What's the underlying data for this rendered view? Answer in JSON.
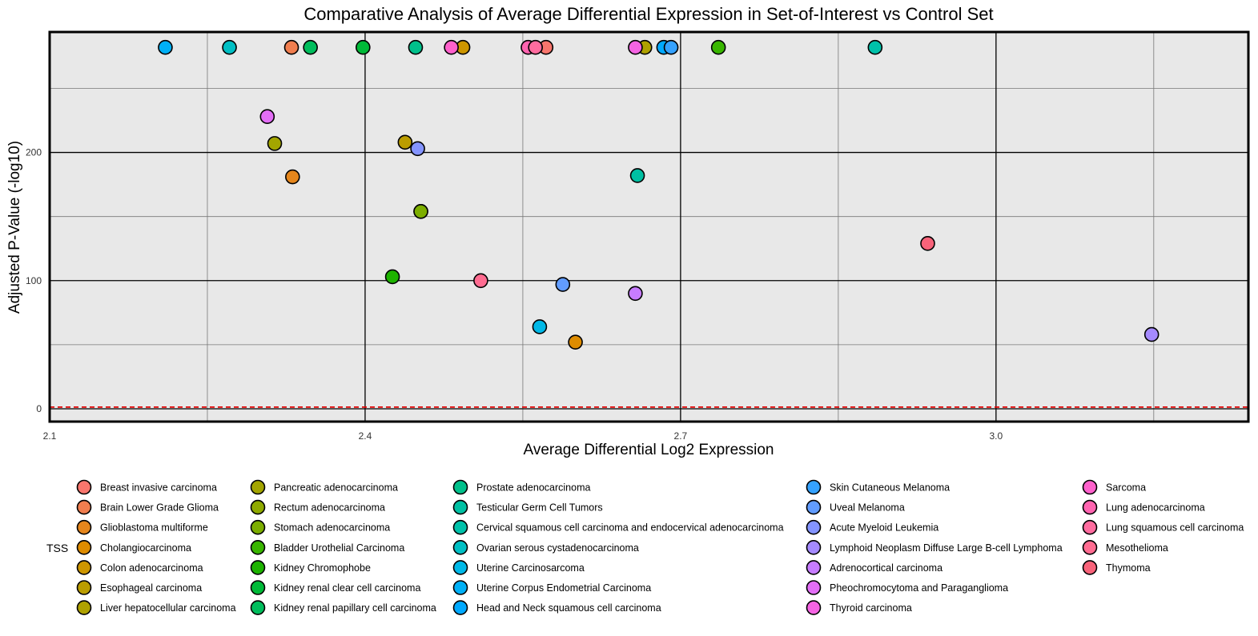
{
  "chart_data": {
    "type": "scatter",
    "title": "Comparative Analysis of Average Differential Expression in Set-of-Interest vs Control Set",
    "xlabel": "Average Differential Log2 Expression",
    "ylabel": "Adjusted P-Value (-log10)",
    "xlim": [
      2.1,
      3.24
    ],
    "ylim": [
      -10,
      294
    ],
    "x_ticks": [
      "2.1",
      "2.4",
      "2.7",
      "3.0"
    ],
    "y_ticks": [
      "0",
      "100",
      "200"
    ],
    "grid": true,
    "threshold_line": {
      "y": 1.3,
      "color": "#e00000",
      "style": "dashed"
    },
    "legend": {
      "title": "TSS",
      "placement": "bottom",
      "columns": [
        [
          "Breast invasive carcinoma",
          "Brain Lower Grade Glioma",
          "Glioblastoma multiforme",
          "Cholangiocarcinoma",
          "Colon adenocarcinoma",
          "Esophageal carcinoma",
          "Liver hepatocellular carcinoma"
        ],
        [
          "Pancreatic adenocarcinoma",
          "Rectum adenocarcinoma",
          "Stomach adenocarcinoma",
          "Bladder Urothelial Carcinoma",
          "Kidney Chromophobe",
          "Kidney renal clear cell carcinoma",
          "Kidney renal papillary cell carcinoma"
        ],
        [
          "Prostate adenocarcinoma",
          "Testicular Germ Cell Tumors",
          "Cervical squamous cell carcinoma and endocervical adenocarcinoma",
          "Ovarian serous cystadenocarcinoma",
          "Uterine Carcinosarcoma",
          "Uterine Corpus Endometrial Carcinoma",
          "Head and Neck squamous cell carcinoma"
        ],
        [
          "Skin Cutaneous Melanoma",
          "Uveal Melanoma",
          "Acute Myeloid Leukemia",
          "Lymphoid Neoplasm Diffuse Large B-cell Lymphoma",
          "Adrenocortical carcinoma",
          "Pheochromocytoma and Paraganglioma",
          "Thyroid carcinoma"
        ],
        [
          "Sarcoma",
          "Lung adenocarcinoma",
          "Lung squamous cell carcinoma",
          "Mesothelioma",
          "Thymoma"
        ]
      ]
    },
    "series": [
      {
        "name": "Breast invasive carcinoma",
        "color": "#F8766D",
        "x": 2.572,
        "y": 282
      },
      {
        "name": "Brain Lower Grade Glioma",
        "color": "#F07E4F",
        "x": 2.33,
        "y": 282
      },
      {
        "name": "Glioblastoma multiforme",
        "color": "#E5861C",
        "x": 2.331,
        "y": 181
      },
      {
        "name": "Cholangiocarcinoma",
        "color": "#DE8C00",
        "x": 2.6,
        "y": 52
      },
      {
        "name": "Colon adenocarcinoma",
        "color": "#CD9600",
        "x": 2.493,
        "y": 282
      },
      {
        "name": "Esophageal carcinoma",
        "color": "#BB9D00",
        "x": 2.438,
        "y": 208
      },
      {
        "name": "Liver hepatocellular carcinoma",
        "color": "#AFA100",
        "x": 2.666,
        "y": 282
      },
      {
        "name": "Pancreatic adenocarcinoma",
        "color": "#A3A500",
        "x": 2.314,
        "y": 207
      },
      {
        "name": "Rectum adenocarcinoma",
        "color": "#8FAA00",
        "x": 2.453,
        "y": 154
      },
      {
        "name": "Stomach adenocarcinoma",
        "color": "#7CAE00",
        "x": 2.453,
        "y": 154
      },
      {
        "name": "Bladder Urothelial Carcinoma",
        "color": "#39B600",
        "x": 2.736,
        "y": 282
      },
      {
        "name": "Kidney Chromophobe",
        "color": "#1DB300",
        "x": 2.426,
        "y": 103
      },
      {
        "name": "Kidney renal clear cell carcinoma",
        "color": "#00BA38",
        "x": 2.398,
        "y": 282
      },
      {
        "name": "Kidney renal papillary cell carcinoma",
        "color": "#00BD5C",
        "x": 2.348,
        "y": 282
      },
      {
        "name": "Prostate adenocarcinoma",
        "color": "#00C08B",
        "x": 2.448,
        "y": 282
      },
      {
        "name": "Testicular Germ Cell Tumors",
        "color": "#00C0A3",
        "x": 2.659,
        "y": 182
      },
      {
        "name": "Cervical squamous cell carcinoma and endocervical adenocarcinoma",
        "color": "#00C1AA",
        "x": 2.885,
        "y": 282
      },
      {
        "name": "Ovarian serous cystadenocarcinoma",
        "color": "#00BFC4",
        "x": 2.271,
        "y": 282
      },
      {
        "name": "Uterine Carcinosarcoma",
        "color": "#00B8E7",
        "x": 2.566,
        "y": 64
      },
      {
        "name": "Uterine Corpus Endometrial Carcinoma",
        "color": "#00B0F6",
        "x": 2.21,
        "y": 282
      },
      {
        "name": "Head and Neck squamous cell carcinoma",
        "color": "#00A9FF",
        "x": 2.684,
        "y": 282
      },
      {
        "name": "Skin Cutaneous Melanoma",
        "color": "#35A2FF",
        "x": 2.691,
        "y": 282
      },
      {
        "name": "Uveal Melanoma",
        "color": "#619CFF",
        "x": 2.588,
        "y": 97
      },
      {
        "name": "Acute Myeloid Leukemia",
        "color": "#8494FF",
        "x": 2.45,
        "y": 203
      },
      {
        "name": "Lymphoid Neoplasm Diffuse Large B-cell Lymphoma",
        "color": "#A58AFF",
        "x": 3.148,
        "y": 58
      },
      {
        "name": "Adrenocortical carcinoma",
        "color": "#C77CFF",
        "x": 2.657,
        "y": 90
      },
      {
        "name": "Pheochromocytoma and Paraganglioma",
        "color": "#E36EF6",
        "x": 2.307,
        "y": 228
      },
      {
        "name": "Thyroid carcinoma",
        "color": "#F564E3",
        "x": 2.657,
        "y": 282
      },
      {
        "name": "Sarcoma",
        "color": "#FF61CC",
        "x": 2.482,
        "y": 282
      },
      {
        "name": "Lung adenocarcinoma",
        "color": "#FF64B0",
        "x": 2.555,
        "y": 282
      },
      {
        "name": "Lung squamous cell carcinoma",
        "color": "#FF6C9F",
        "x": 2.562,
        "y": 282
      },
      {
        "name": "Mesothelioma",
        "color": "#FF6C91",
        "x": 2.51,
        "y": 100
      },
      {
        "name": "Thymoma",
        "color": "#F8637A",
        "x": 2.935,
        "y": 129
      }
    ]
  }
}
